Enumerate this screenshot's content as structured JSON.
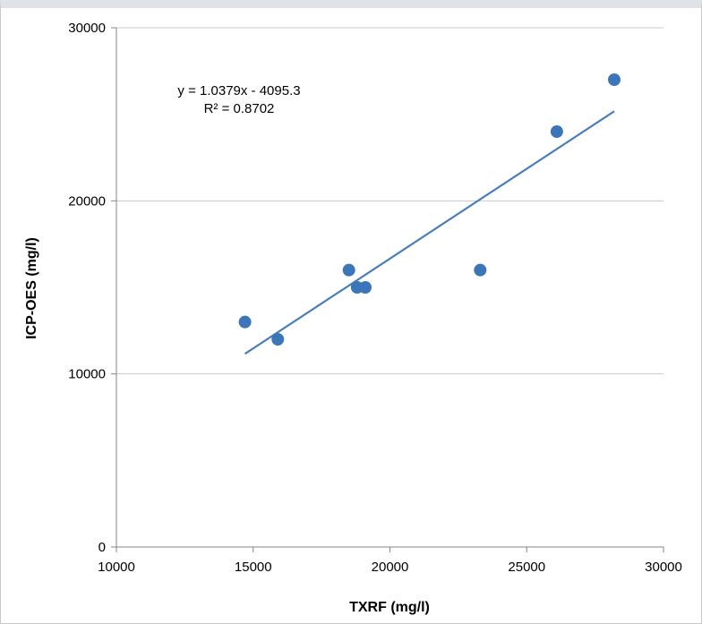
{
  "chart_data": {
    "type": "scatter",
    "title": "",
    "xlabel": "TXRF (mg/l)",
    "ylabel": "ICP-OES (mg/l)",
    "xlim": [
      10000,
      30000
    ],
    "ylim": [
      0,
      30000
    ],
    "x_ticks": [
      10000,
      15000,
      20000,
      25000,
      30000
    ],
    "y_ticks": [
      0,
      10000,
      20000,
      30000
    ],
    "grid": "horizontal",
    "series": [
      {
        "x": [
          14700,
          15900,
          18500,
          18800,
          19100,
          23300,
          26100,
          28200
        ],
        "y": [
          13000,
          12000,
          16000,
          15000,
          15000,
          16000,
          24000,
          27000
        ],
        "color": "#3d76b8"
      }
    ],
    "trendline": {
      "slope": 1.0379,
      "intercept": -4095.3,
      "x_range": [
        14700,
        28200
      ],
      "color": "#4a7ebb",
      "equation": "y = 1.0379x - 4095.3",
      "r_squared": "R² = 0.8702"
    }
  }
}
